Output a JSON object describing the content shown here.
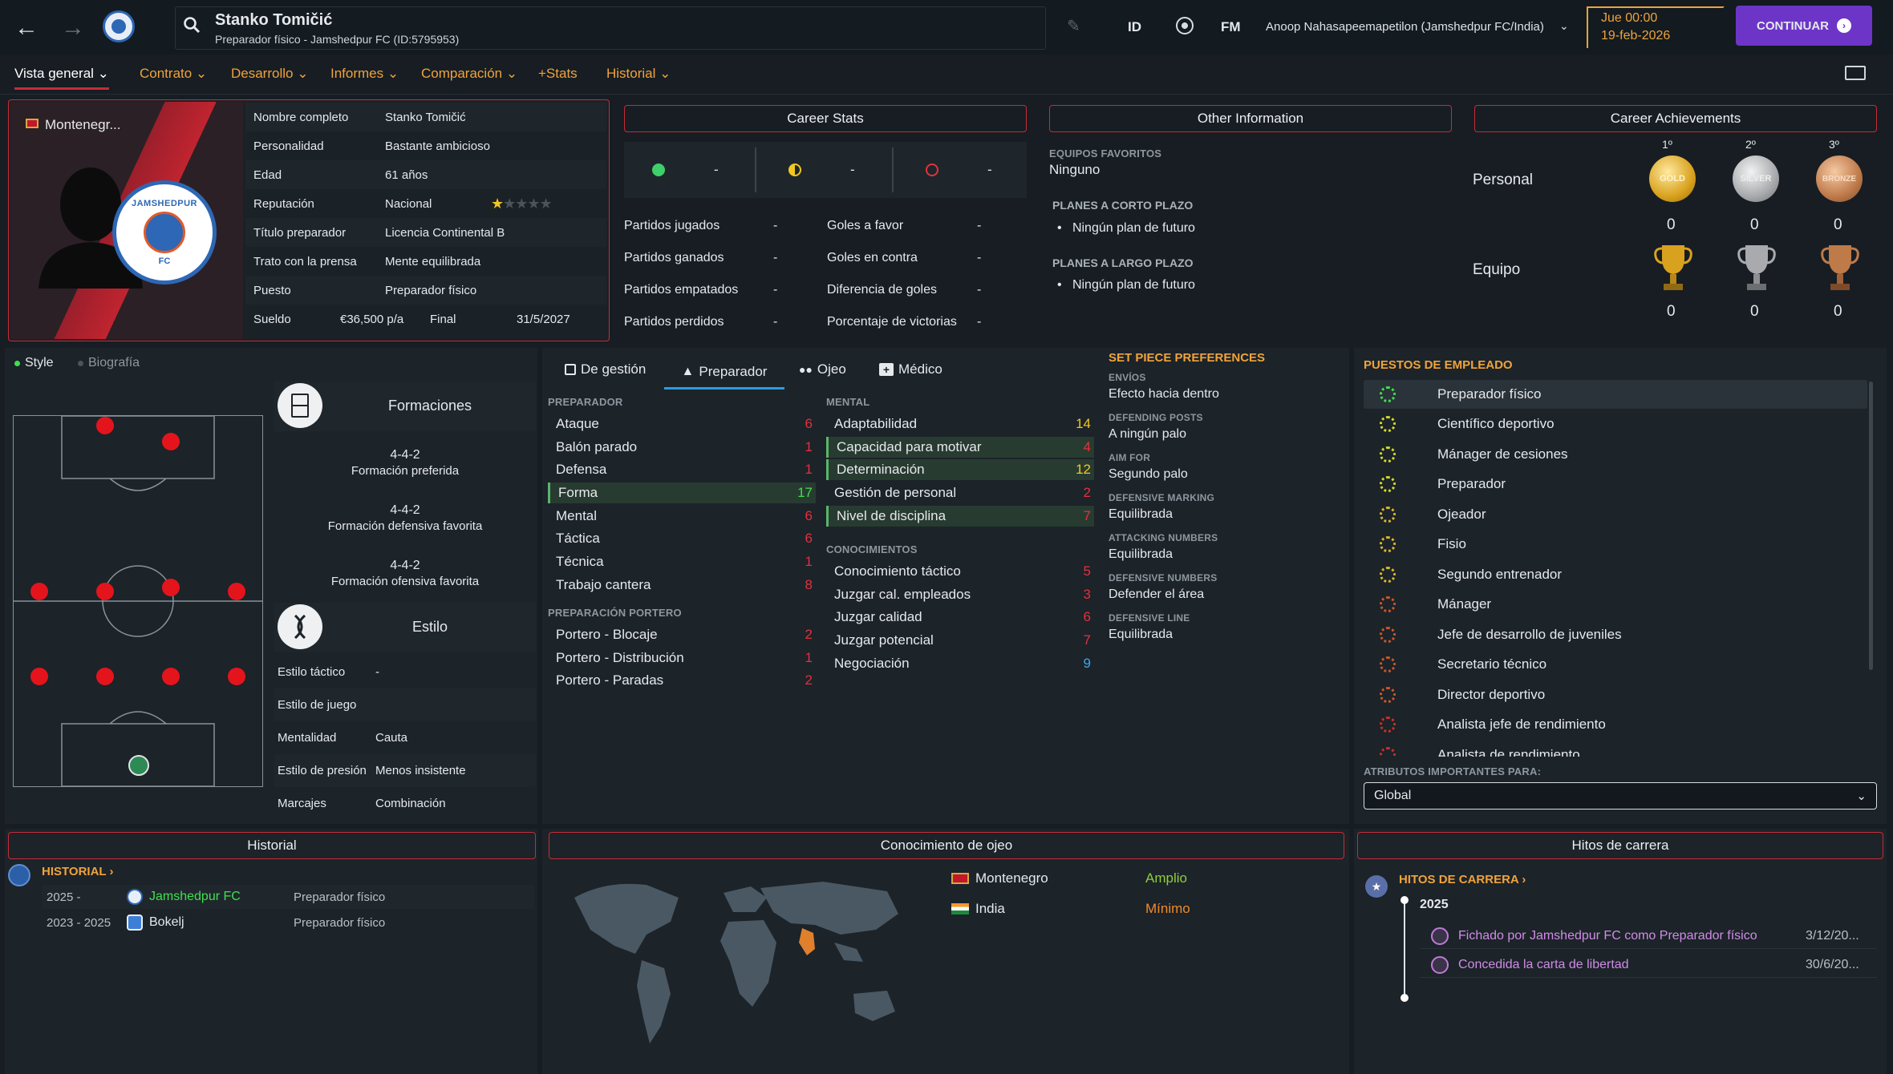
{
  "header": {
    "name": "Stanko Tomičić",
    "subtitle": "Preparador físico - Jamshedpur FC (ID:5795953)",
    "id_label": "ID",
    "fm_label": "FM",
    "manager": "Anoop Nahasapeemapetilon (Jamshedpur FC/India)",
    "day_time": "Jue 00:00",
    "date": "19-feb-2026",
    "continue_label": "CONTINUAR"
  },
  "nav": {
    "tabs": [
      {
        "label": "Vista general"
      },
      {
        "label": "Contrato"
      },
      {
        "label": "Desarrollo"
      },
      {
        "label": "Informes"
      },
      {
        "label": "Comparación"
      },
      {
        "label": "+Stats"
      },
      {
        "label": "Historial"
      }
    ]
  },
  "profile": {
    "nation_short": "Montenegr...",
    "club_badge_text": "JAMSHEDPUR",
    "club_badge_fc": "FC",
    "fields": [
      {
        "label": "Nombre completo",
        "value": "Stanko Tomičić"
      },
      {
        "label": "Personalidad",
        "value": "Bastante ambicioso"
      },
      {
        "label": "Edad",
        "value": "61 años"
      },
      {
        "label": "Reputación",
        "value": "Nacional"
      },
      {
        "label": "Título preparador",
        "value": "Licencia Continental B"
      },
      {
        "label": "Trato con la prensa",
        "value": "Mente equilibrada"
      },
      {
        "label": "Puesto",
        "value": "Preparador físico"
      }
    ],
    "reputation_stars": 1,
    "reputation_max": 5,
    "wage_label": "Sueldo",
    "wage_value": "€36,500 p/a",
    "end_label": "Final",
    "end_value": "31/5/2027"
  },
  "career_stats": {
    "title": "Career Stats",
    "icon_values": [
      "-",
      "-",
      "-"
    ],
    "left": [
      {
        "label": "Partidos jugados",
        "value": "-"
      },
      {
        "label": "Partidos ganados",
        "value": "-"
      },
      {
        "label": "Partidos empatados",
        "value": "-"
      },
      {
        "label": "Partidos perdidos",
        "value": "-"
      }
    ],
    "right": [
      {
        "label": "Goles a favor",
        "value": "-"
      },
      {
        "label": "Goles en contra",
        "value": "-"
      },
      {
        "label": "Diferencia de goles",
        "value": "-"
      },
      {
        "label": "Porcentaje de victorias",
        "value": "-"
      }
    ]
  },
  "other_info": {
    "title": "Other Information",
    "fav_label": "EQUIPOS FAVORITOS",
    "fav_value": "Ninguno",
    "short_label": "PLANES A CORTO PLAZO",
    "short_value": "Ningún plan de futuro",
    "long_label": "PLANES A LARGO PLAZO",
    "long_value": "Ningún plan de futuro"
  },
  "achievements": {
    "title": "Career Achievements",
    "places": [
      "1º",
      "2º",
      "3º"
    ],
    "medals": [
      "GOLD",
      "SILVER",
      "BRONZE"
    ],
    "personal_label": "Personal",
    "team_label": "Equipo",
    "personal_counts": [
      "0",
      "0",
      "0"
    ],
    "team_counts": [
      "0",
      "0",
      "0"
    ]
  },
  "style": {
    "toggle_style": "Style",
    "toggle_bio": "Biografía",
    "formations_title": "Formaciones",
    "formations": [
      {
        "value": "4-4-2",
        "label": "Formación preferida"
      },
      {
        "value": "4-4-2",
        "label": "Formación defensiva favorita"
      },
      {
        "value": "4-4-2",
        "label": "Formación ofensiva favorita"
      }
    ],
    "estilo_title": "Estilo",
    "rows": [
      {
        "label": "Estilo táctico",
        "value": "-"
      },
      {
        "label": "Estilo de juego",
        "value": ""
      },
      {
        "label": "Mentalidad",
        "value": "Cauta"
      },
      {
        "label": "Estilo de presión",
        "value": "Menos insistente"
      },
      {
        "label": "Marcajes",
        "value": "Combinación"
      }
    ]
  },
  "attributes": {
    "tabs": [
      "De gestión",
      "Preparador",
      "Ojeo",
      "Médico"
    ],
    "preparador_label": "PREPARADOR",
    "preparador": [
      {
        "label": "Ataque",
        "value": "6"
      },
      {
        "label": "Balón parado",
        "value": "1"
      },
      {
        "label": "Defensa",
        "value": "1"
      },
      {
        "label": "Forma",
        "value": "17"
      },
      {
        "label": "Mental",
        "value": "6"
      },
      {
        "label": "Táctica",
        "value": "6"
      },
      {
        "label": "Técnica",
        "value": "1"
      },
      {
        "label": "Trabajo cantera",
        "value": "8"
      }
    ],
    "portero_label": "PREPARACIÓN PORTERO",
    "portero": [
      {
        "label": "Portero - Blocaje",
        "value": "2"
      },
      {
        "label": "Portero - Distribución",
        "value": "1"
      },
      {
        "label": "Portero - Paradas",
        "value": "2"
      }
    ],
    "mental_label": "MENTAL",
    "mental": [
      {
        "label": "Adaptabilidad",
        "value": "14"
      },
      {
        "label": "Capacidad para motivar",
        "value": "4"
      },
      {
        "label": "Determinación",
        "value": "12"
      },
      {
        "label": "Gestión de personal",
        "value": "2"
      },
      {
        "label": "Nivel de disciplina",
        "value": "7"
      }
    ],
    "conoc_label": "CONOCIMIENTOS",
    "conoc": [
      {
        "label": "Conocimiento táctico",
        "value": "5"
      },
      {
        "label": "Juzgar cal. empleados",
        "value": "3"
      },
      {
        "label": "Juzgar calidad",
        "value": "6"
      },
      {
        "label": "Juzgar potencial",
        "value": "7"
      },
      {
        "label": "Negociación",
        "value": "9"
      }
    ]
  },
  "setpiece": {
    "title": "SET PIECE PREFERENCES",
    "items": [
      {
        "label": "ENVÍOS",
        "value": "Efecto hacia dentro"
      },
      {
        "label": "DEFENDING POSTS",
        "value": "A ningún palo"
      },
      {
        "label": "AIM FOR",
        "value": "Segundo palo"
      },
      {
        "label": "DEFENSIVE MARKING",
        "value": "Equilibrada"
      },
      {
        "label": "ATTACKING NUMBERS",
        "value": "Equilibrada"
      },
      {
        "label": "DEFENSIVE NUMBERS",
        "value": "Defender el área"
      },
      {
        "label": "DEFENSIVE LINE",
        "value": "Equilibrada"
      }
    ]
  },
  "roles": {
    "title": "PUESTOS DE EMPLEADO",
    "items": [
      "Preparador físico",
      "Científico deportivo",
      "Mánager de cesiones",
      "Preparador",
      "Ojeador",
      "Fisio",
      "Segundo entrenador",
      "Mánager",
      "Jefe de desarrollo de juveniles",
      "Secretario técnico",
      "Director deportivo",
      "Analista jefe de rendimiento",
      "Analista de rendimiento"
    ],
    "important_label": "ATRIBUTOS IMPORTANTES PARA:",
    "important_value": "Global"
  },
  "history": {
    "title": "Historial",
    "link": "HISTORIAL",
    "rows": [
      {
        "years": "2025 -",
        "club": "Jamshedpur FC",
        "role": "Preparador físico"
      },
      {
        "years": "2023 - 2025",
        "club": "Bokelj",
        "role": "Preparador físico"
      }
    ]
  },
  "scouting": {
    "title": "Conocimiento de ojeo",
    "rows": [
      {
        "country": "Montenegro",
        "level": "Amplio"
      },
      {
        "country": "India",
        "level": "Mínimo"
      }
    ]
  },
  "milestones": {
    "title": "Hitos de carrera",
    "link": "HITOS DE CARRERA",
    "year": "2025",
    "items": [
      {
        "text": "Fichado por Jamshedpur FC como Preparador físico",
        "date": "3/12/20..."
      },
      {
        "text": "Concedida la carta de libertad",
        "date": "30/6/20..."
      }
    ]
  },
  "colors": {
    "accent_red": "#c62c36",
    "orange": "#f0a33a",
    "purple": "#6d35c7",
    "green": "#3fe04c"
  }
}
